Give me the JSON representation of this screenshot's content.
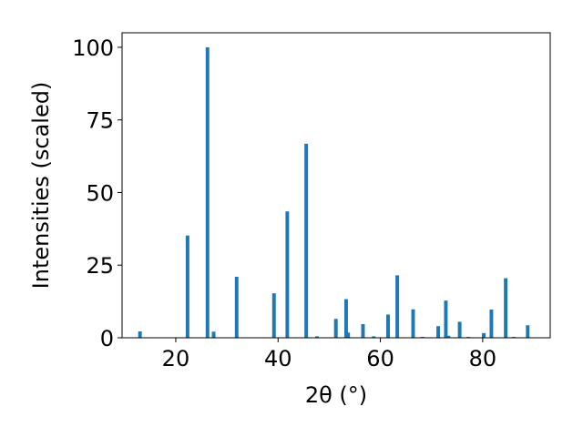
{
  "chart_data": {
    "type": "bar",
    "xlabel": "2θ (°)",
    "ylabel": "Intensities (scaled)",
    "xlim": [
      9.5,
      93.2
    ],
    "ylim": [
      0,
      105
    ],
    "xticks": [
      20,
      40,
      60,
      80
    ],
    "yticks": [
      0,
      25,
      50,
      75,
      100
    ],
    "bar_color": "#1f77b4",
    "bar_width": 0.7,
    "x": [
      13.0,
      22.3,
      26.2,
      27.4,
      31.9,
      39.2,
      41.8,
      45.5,
      47.6,
      51.3,
      53.3,
      53.7,
      56.6,
      58.7,
      61.5,
      63.3,
      66.4,
      68.2,
      71.3,
      72.8,
      73.3,
      75.5,
      77.2,
      80.2,
      81.7,
      84.5,
      86.1,
      88.8
    ],
    "values": [
      2.2,
      35.2,
      100.0,
      2.1,
      21.0,
      15.3,
      43.5,
      66.8,
      0.5,
      6.5,
      13.3,
      1.8,
      4.7,
      0.5,
      8.0,
      21.5,
      9.8,
      0.3,
      4.0,
      12.8,
      0.7,
      5.5,
      0.3,
      1.6,
      9.7,
      20.5,
      0.3,
      4.3
    ]
  }
}
